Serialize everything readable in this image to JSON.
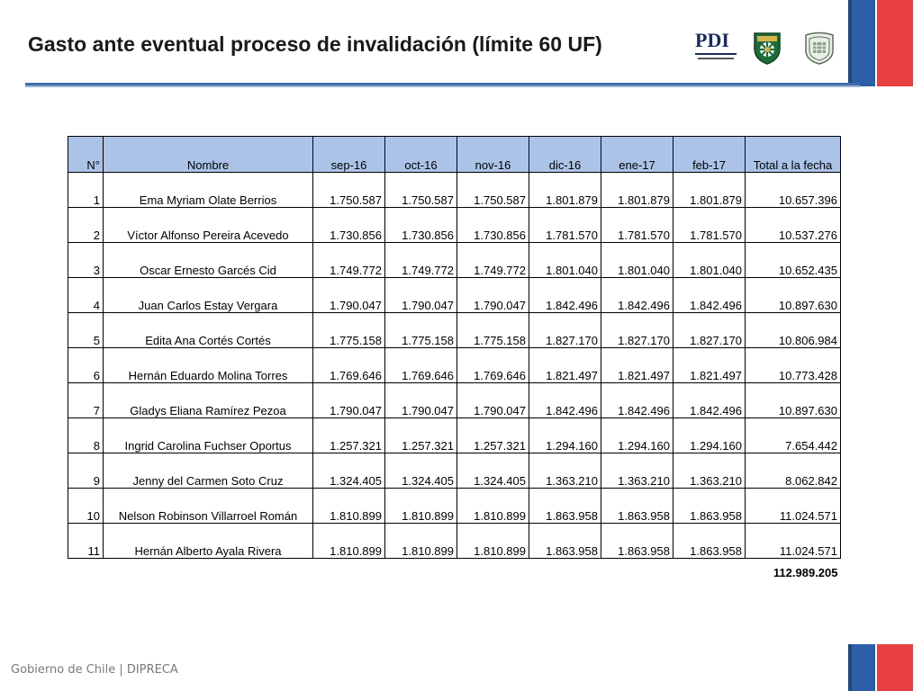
{
  "slide": {
    "title": "Gasto ante eventual proceso de invalidación (límite 60 UF)",
    "footer": "Gobierno de Chile | DIPRECA",
    "logos": [
      {
        "icon": "pdi-logo",
        "text": "PDI"
      },
      {
        "icon": "carabineros-shield-logo"
      },
      {
        "icon": "dipreca-shield-logo"
      }
    ],
    "colors": {
      "header_fill": "#aac3e6",
      "title_rule": "#3f6fa8",
      "flag_blue": "#2b5ea7",
      "flag_red": "#e84040"
    }
  },
  "table": {
    "headers": [
      "N°",
      "Nombre",
      "sep-16",
      "oct-16",
      "nov-16",
      "dic-16",
      "ene-17",
      "feb-17",
      "Total a la fecha"
    ],
    "rows": [
      [
        "1",
        "Ema Myriam Olate Berrios",
        "1.750.587",
        "1.750.587",
        "1.750.587",
        "1.801.879",
        "1.801.879",
        "1.801.879",
        "10.657.396"
      ],
      [
        "2",
        "Víctor Alfonso Pereira Acevedo",
        "1.730.856",
        "1.730.856",
        "1.730.856",
        "1.781.570",
        "1.781.570",
        "1.781.570",
        "10.537.276"
      ],
      [
        "3",
        "Oscar Ernesto Garcés Cid",
        "1.749.772",
        "1.749.772",
        "1.749.772",
        "1.801.040",
        "1.801.040",
        "1.801.040",
        "10.652.435"
      ],
      [
        "4",
        "Juan Carlos Estay Vergara",
        "1.790.047",
        "1.790.047",
        "1.790.047",
        "1.842.496",
        "1.842.496",
        "1.842.496",
        "10.897.630"
      ],
      [
        "5",
        "Edita Ana Cortés Cortés",
        "1.775.158",
        "1.775.158",
        "1.775.158",
        "1.827.170",
        "1.827.170",
        "1.827.170",
        "10.806.984"
      ],
      [
        "6",
        "Hernán Eduardo Molina Torres",
        "1.769.646",
        "1.769.646",
        "1.769.646",
        "1.821.497",
        "1.821.497",
        "1.821.497",
        "10.773.428"
      ],
      [
        "7",
        "Gladys Eliana Ramírez Pezoa",
        "1.790.047",
        "1.790.047",
        "1.790.047",
        "1.842.496",
        "1.842.496",
        "1.842.496",
        "10.897.630"
      ],
      [
        "8",
        "Ingrid Carolina Fuchser Oportus",
        "1.257.321",
        "1.257.321",
        "1.257.321",
        "1.294.160",
        "1.294.160",
        "1.294.160",
        "7.654.442"
      ],
      [
        "9",
        "Jenny del Carmen Soto Cruz",
        "1.324.405",
        "1.324.405",
        "1.324.405",
        "1.363.210",
        "1.363.210",
        "1.363.210",
        "8.062.842"
      ],
      [
        "10",
        "Nelson Robinson Villarroel Román",
        "1.810.899",
        "1.810.899",
        "1.810.899",
        "1.863.958",
        "1.863.958",
        "1.863.958",
        "11.024.571"
      ],
      [
        "11",
        "Hernán Alberto Ayala Rivera",
        "1.810.899",
        "1.810.899",
        "1.810.899",
        "1.863.958",
        "1.863.958",
        "1.863.958",
        "11.024.571"
      ]
    ],
    "grand_total": "112.989.205"
  }
}
